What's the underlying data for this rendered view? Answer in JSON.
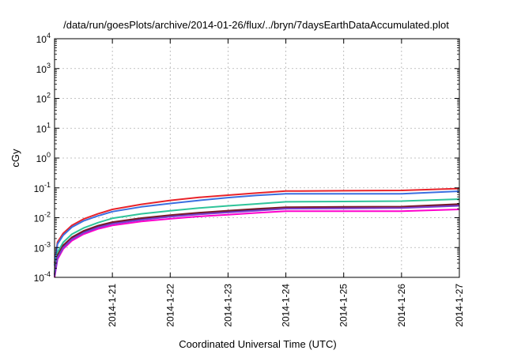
{
  "chart_data": {
    "type": "line",
    "title": "/data/run/goesPlots/archive/2014-01-26/flux/../bryn/7daysEarthDataAccumulated.plot",
    "xlabel": "Coordinated Universal Time (UTC)",
    "ylabel": "cGy",
    "x_range": [
      "2014-01-20",
      "2014-01-27"
    ],
    "x_ticks": [
      "2014-1-21",
      "2014-1-22",
      "2014-1-23",
      "2014-1-24",
      "2014-1-25",
      "2014-1-26",
      "2014-1-27"
    ],
    "y_scale": "log",
    "ylim": [
      0.0001,
      10000
    ],
    "y_ticks": [
      {
        "base": "10",
        "exp": "-4"
      },
      {
        "base": "10",
        "exp": "-3"
      },
      {
        "base": "10",
        "exp": "-2"
      },
      {
        "base": "10",
        "exp": "-1"
      },
      {
        "base": "10",
        "exp": "0"
      },
      {
        "base": "10",
        "exp": "1"
      },
      {
        "base": "10",
        "exp": "2"
      },
      {
        "base": "10",
        "exp": "3"
      },
      {
        "base": "10",
        "exp": "4"
      }
    ],
    "grid": true,
    "legend": "none",
    "series": [
      {
        "color": "#e8232a",
        "x": [
          "2014-01-20.00",
          "2014-01-20.05",
          "2014-01-20.15",
          "2014-01-20.30",
          "2014-01-20.50",
          "2014-01-20.75",
          "2014-01-21.00",
          "2014-01-21.50",
          "2014-01-22.00",
          "2014-01-22.50",
          "2014-01-23.00",
          "2014-01-23.50",
          "2014-01-24.00",
          "2014-01-25.00",
          "2014-01-26.00",
          "2014-01-27.00"
        ],
        "values": [
          0.0003,
          0.0015,
          0.003,
          0.0055,
          0.009,
          0.0135,
          0.019,
          0.028,
          0.038,
          0.048,
          0.057,
          0.067,
          0.078,
          0.08,
          0.082,
          0.095
        ]
      },
      {
        "color": "#3b6fe0",
        "x": [
          "2014-01-20.00",
          "2014-01-20.05",
          "2014-01-20.15",
          "2014-01-20.30",
          "2014-01-20.50",
          "2014-01-20.75",
          "2014-01-21.00",
          "2014-01-21.50",
          "2014-01-22.00",
          "2014-01-22.50",
          "2014-01-23.00",
          "2014-01-23.50",
          "2014-01-24.00",
          "2014-01-25.00",
          "2014-01-26.00",
          "2014-01-27.00"
        ],
        "values": [
          0.00025,
          0.0013,
          0.0026,
          0.0048,
          0.0078,
          0.0115,
          0.016,
          0.023,
          0.03,
          0.038,
          0.047,
          0.056,
          0.063,
          0.063,
          0.063,
          0.077
        ]
      },
      {
        "color": "#2fc49a",
        "x": [
          "2014-01-20.00",
          "2014-01-20.05",
          "2014-01-20.15",
          "2014-01-20.30",
          "2014-01-20.50",
          "2014-01-20.75",
          "2014-01-21.00",
          "2014-01-21.50",
          "2014-01-22.00",
          "2014-01-22.50",
          "2014-01-23.00",
          "2014-01-23.50",
          "2014-01-24.00",
          "2014-01-25.00",
          "2014-01-26.00",
          "2014-01-27.00"
        ],
        "values": [
          0.00015,
          0.0007,
          0.0015,
          0.0028,
          0.0045,
          0.0068,
          0.0095,
          0.0135,
          0.017,
          0.021,
          0.025,
          0.029,
          0.034,
          0.035,
          0.036,
          0.042
        ]
      },
      {
        "color": "#ff00cc",
        "x": [
          "2014-01-20.00",
          "2014-01-20.05",
          "2014-01-20.15",
          "2014-01-20.30",
          "2014-01-20.50",
          "2014-01-20.75",
          "2014-01-21.00",
          "2014-01-21.50",
          "2014-01-22.00",
          "2014-01-22.50",
          "2014-01-23.00",
          "2014-01-23.50",
          "2014-01-24.00",
          "2014-01-25.00",
          "2014-01-26.00",
          "2014-01-27.00"
        ],
        "values": [
          0.0001,
          0.0004,
          0.0009,
          0.0017,
          0.0028,
          0.0042,
          0.0055,
          0.0075,
          0.0092,
          0.011,
          0.0125,
          0.0145,
          0.0165,
          0.0165,
          0.0165,
          0.019
        ]
      },
      {
        "color": "#2a1a8a",
        "x": [
          "2014-01-20.00",
          "2014-01-20.05",
          "2014-01-20.15",
          "2014-01-20.30",
          "2014-01-20.50",
          "2014-01-20.75",
          "2014-01-21.00",
          "2014-01-21.50",
          "2014-01-22.00",
          "2014-01-22.50",
          "2014-01-23.00",
          "2014-01-23.50",
          "2014-01-24.00",
          "2014-01-25.00",
          "2014-01-26.00",
          "2014-01-27.00"
        ],
        "values": [
          0.00012,
          0.0005,
          0.0011,
          0.002,
          0.0033,
          0.005,
          0.0066,
          0.009,
          0.0115,
          0.014,
          0.0165,
          0.019,
          0.022,
          0.0225,
          0.023,
          0.027
        ]
      },
      {
        "color": "#7a1a2a",
        "x": [
          "2014-01-20.00",
          "2014-01-20.05",
          "2014-01-20.15",
          "2014-01-20.30",
          "2014-01-20.50",
          "2014-01-20.75",
          "2014-01-21.00",
          "2014-01-21.50",
          "2014-01-22.00",
          "2014-01-22.50",
          "2014-01-23.00",
          "2014-01-23.50",
          "2014-01-24.00",
          "2014-01-25.00",
          "2014-01-26.00",
          "2014-01-27.00"
        ],
        "values": [
          0.00013,
          0.00055,
          0.0012,
          0.0022,
          0.0036,
          0.0054,
          0.0071,
          0.0097,
          0.0122,
          0.0148,
          0.0172,
          0.0198,
          0.0225,
          0.023,
          0.0235,
          0.0285
        ]
      },
      {
        "color": "#7b3fd0",
        "x": [
          "2014-01-20.00",
          "2014-01-20.05",
          "2014-01-20.15",
          "2014-01-20.30",
          "2014-01-20.50",
          "2014-01-20.75",
          "2014-01-21.00",
          "2014-01-21.50",
          "2014-01-22.00",
          "2014-01-22.50",
          "2014-01-23.00",
          "2014-01-23.50",
          "2014-01-24.00",
          "2014-01-25.00",
          "2014-01-26.00",
          "2014-01-27.00"
        ],
        "values": [
          0.00011,
          0.00045,
          0.001,
          0.0019,
          0.0031,
          0.0047,
          0.0062,
          0.0085,
          0.0108,
          0.013,
          0.015,
          0.0172,
          0.02,
          0.0205,
          0.021,
          0.025
        ]
      }
    ]
  }
}
